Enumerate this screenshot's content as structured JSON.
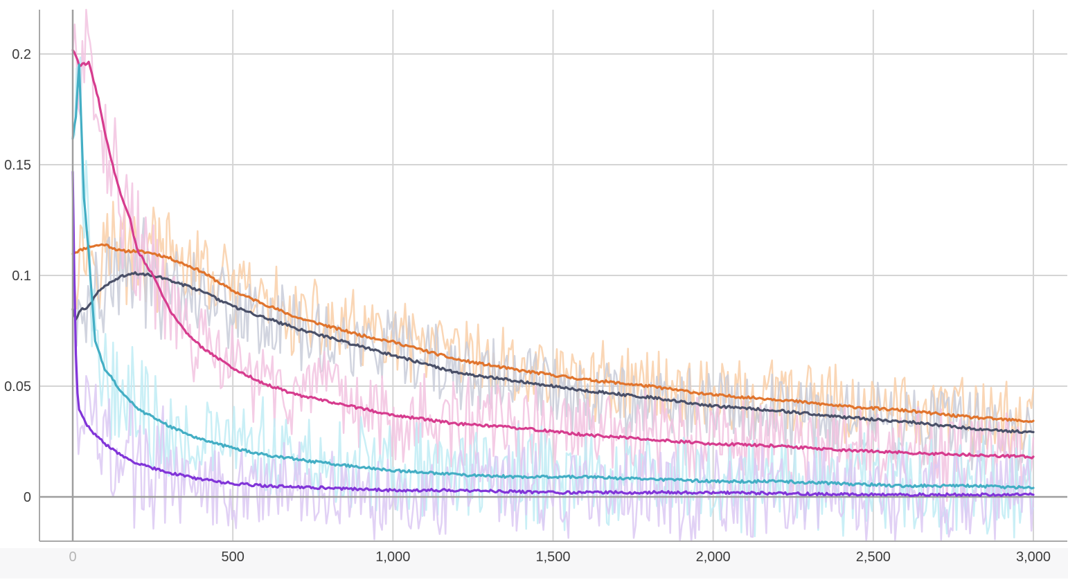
{
  "chart_data": {
    "type": "line",
    "title": "",
    "xlabel": "",
    "ylabel": "",
    "xlim": [
      0,
      3000
    ],
    "ylim": [
      -0.02,
      0.22
    ],
    "x_ticks": [
      0,
      500,
      1000,
      1500,
      2000,
      2500,
      3000
    ],
    "x_tick_labels": [
      "0",
      "500",
      "1,000",
      "1,500",
      "2,000",
      "2,500",
      "3,000"
    ],
    "y_ticks": [
      0,
      0.05,
      0.1,
      0.15,
      0.2
    ],
    "y_tick_labels": [
      "0",
      "0.05",
      "0.1",
      "0.15",
      "0.2"
    ],
    "grid": true,
    "legend": "none",
    "smoothed_and_raw": true,
    "series": [
      {
        "color": "#e0742d",
        "raw_color": "#f9cfa8",
        "x": [
          0,
          50,
          100,
          150,
          200,
          250,
          300,
          350,
          400,
          500,
          600,
          700,
          800,
          900,
          1000,
          1200,
          1400,
          1600,
          1800,
          2000,
          2200,
          2400,
          2600,
          2800,
          3000
        ],
        "values": [
          0.11,
          0.113,
          0.114,
          0.111,
          0.111,
          0.11,
          0.108,
          0.105,
          0.102,
          0.093,
          0.087,
          0.081,
          0.077,
          0.073,
          0.07,
          0.062,
          0.057,
          0.053,
          0.05,
          0.046,
          0.044,
          0.041,
          0.039,
          0.036,
          0.034
        ]
      },
      {
        "color": "#4a5068",
        "raw_color": "#c9cdd9",
        "x": [
          0,
          10,
          20,
          50,
          80,
          120,
          160,
          200,
          250,
          300,
          400,
          500,
          600,
          700,
          800,
          900,
          1000,
          1200,
          1400,
          1600,
          1800,
          2000,
          2200,
          2400,
          2600,
          2800,
          3000
        ],
        "values": [
          0.085,
          0.08,
          0.084,
          0.086,
          0.093,
          0.097,
          0.1,
          0.101,
          0.1,
          0.098,
          0.093,
          0.086,
          0.081,
          0.076,
          0.072,
          0.068,
          0.064,
          0.056,
          0.052,
          0.048,
          0.045,
          0.041,
          0.039,
          0.036,
          0.034,
          0.031,
          0.029
        ]
      },
      {
        "color": "#d63c8e",
        "raw_color": "#f2c3e0",
        "x": [
          0,
          20,
          50,
          80,
          100,
          120,
          150,
          180,
          200,
          250,
          300,
          350,
          400,
          500,
          600,
          700,
          800,
          900,
          1000,
          1200,
          1400,
          1600,
          1800,
          2000,
          2200,
          2400,
          2600,
          2800,
          3000
        ],
        "values": [
          0.202,
          0.195,
          0.196,
          0.18,
          0.165,
          0.152,
          0.137,
          0.125,
          0.112,
          0.1,
          0.085,
          0.075,
          0.068,
          0.058,
          0.051,
          0.046,
          0.043,
          0.04,
          0.037,
          0.033,
          0.031,
          0.028,
          0.026,
          0.024,
          0.023,
          0.021,
          0.02,
          0.019,
          0.018
        ]
      },
      {
        "color": "#43aec4",
        "raw_color": "#bfecf5",
        "x": [
          0,
          10,
          20,
          35,
          50,
          70,
          100,
          150,
          200,
          300,
          400,
          500,
          600,
          800,
          1000,
          1200,
          1400,
          1600,
          1800,
          2000,
          2200,
          2400,
          2600,
          2800,
          3000
        ],
        "values": [
          0.162,
          0.172,
          0.195,
          0.135,
          0.11,
          0.07,
          0.058,
          0.048,
          0.04,
          0.032,
          0.026,
          0.022,
          0.019,
          0.015,
          0.012,
          0.01,
          0.009,
          0.009,
          0.008,
          0.007,
          0.007,
          0.006,
          0.005,
          0.005,
          0.004
        ]
      },
      {
        "color": "#8135d8",
        "raw_color": "#dcc9f3",
        "x": [
          0,
          5,
          12,
          20,
          40,
          70,
          100,
          150,
          200,
          300,
          400,
          500,
          600,
          800,
          1000,
          1200,
          1500,
          2000,
          2500,
          3000
        ],
        "values": [
          0.147,
          0.1,
          0.05,
          0.04,
          0.033,
          0.028,
          0.024,
          0.019,
          0.015,
          0.011,
          0.008,
          0.006,
          0.005,
          0.004,
          0.003,
          0.003,
          0.002,
          0.002,
          0.001,
          0.001
        ]
      }
    ]
  }
}
